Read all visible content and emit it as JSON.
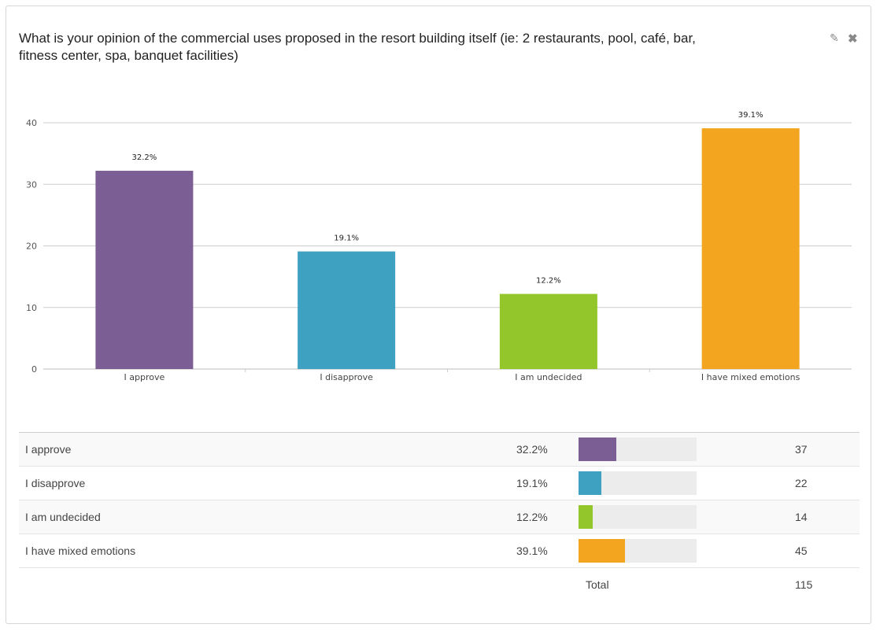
{
  "title": "What is your opinion of the commercial uses proposed in the resort building itself (ie: 2 restaurants, pool, café, bar, fitness center, spa, banquet facilities)",
  "icons": {
    "edit": "pencil-icon",
    "close": "close-icon"
  },
  "chart_data": {
    "type": "bar",
    "categories": [
      "I approve",
      "I disapprove",
      "I am undecided",
      "I have mixed emotions"
    ],
    "values": [
      32.2,
      19.1,
      12.2,
      39.1
    ],
    "data_labels": [
      "32.2%",
      "19.1%",
      "12.2%",
      "39.1%"
    ],
    "colors": [
      "#7b5e93",
      "#3ea1c2",
      "#92c62a",
      "#f4a51f"
    ],
    "ylim": [
      0,
      40
    ],
    "yticks": [
      0,
      10,
      20,
      30,
      40
    ],
    "grid": true,
    "title": "",
    "xlabel": "",
    "ylabel": ""
  },
  "table": {
    "rows": [
      {
        "label": "I approve",
        "pct": "32.2%",
        "fraction": 0.322,
        "color": "#7b5e93",
        "count": "37"
      },
      {
        "label": "I disapprove",
        "pct": "19.1%",
        "fraction": 0.191,
        "color": "#3ea1c2",
        "count": "22"
      },
      {
        "label": "I am undecided",
        "pct": "12.2%",
        "fraction": 0.122,
        "color": "#92c62a",
        "count": "14"
      },
      {
        "label": "I have mixed emotions",
        "pct": "39.1%",
        "fraction": 0.391,
        "color": "#f4a51f",
        "count": "45"
      }
    ],
    "total_label": "Total",
    "total_count": "115"
  }
}
